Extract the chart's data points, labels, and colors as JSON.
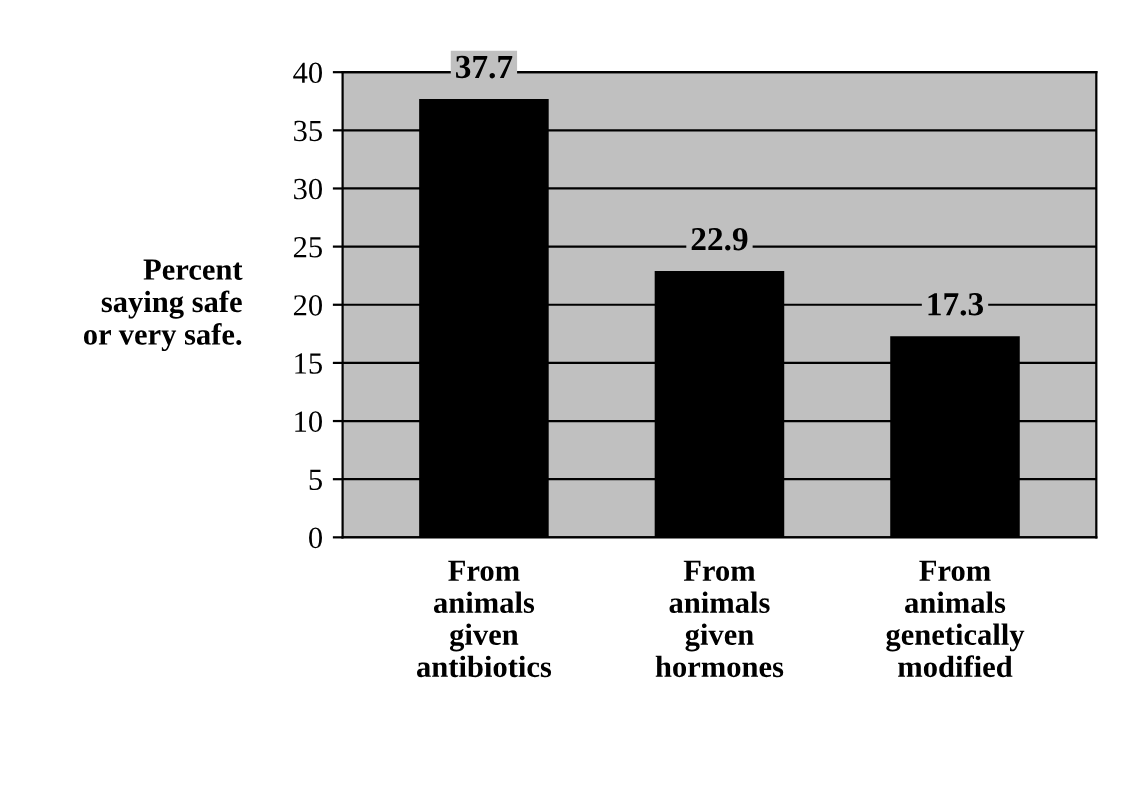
{
  "chart_data": {
    "type": "bar",
    "ylabel": "Percent\nsaying safe\nor very safe.",
    "categories": [
      "From\nanimals\ngiven\nantibiotics",
      "From\nanimals\ngiven\nhormones",
      "From\nanimals\ngenetically\nmodified"
    ],
    "values": [
      37.7,
      22.9,
      17.3
    ],
    "color": "#000000",
    "ylim": [
      0,
      40
    ],
    "yticks": [
      0,
      5,
      10,
      15,
      20,
      25,
      30,
      35,
      40
    ],
    "grid": "y",
    "data_labels": true
  }
}
